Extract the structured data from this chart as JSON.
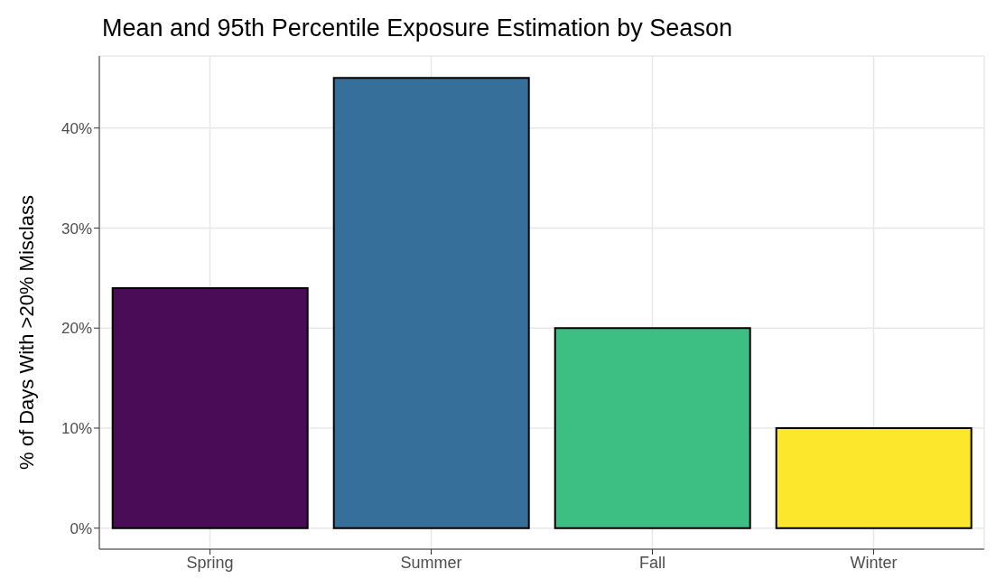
{
  "chart_data": {
    "type": "bar",
    "title": "Mean and 95th Percentile Exposure Estimation by Season",
    "ylabel": "% of Days With >20% Misclass",
    "categories": [
      "Spring",
      "Summer",
      "Fall",
      "Winter"
    ],
    "values": [
      24,
      45,
      20,
      10
    ],
    "colors": [
      "#4a0c56",
      "#36709a",
      "#3dbf83",
      "#fde72c"
    ],
    "ylim": [
      -2.1,
      47.2
    ],
    "yticks": [
      {
        "value": 0,
        "label": "0%"
      },
      {
        "value": 10,
        "label": "10%"
      },
      {
        "value": 20,
        "label": "20%"
      },
      {
        "value": 30,
        "label": "30%"
      },
      {
        "value": 40,
        "label": "40%"
      }
    ],
    "grid": true
  }
}
